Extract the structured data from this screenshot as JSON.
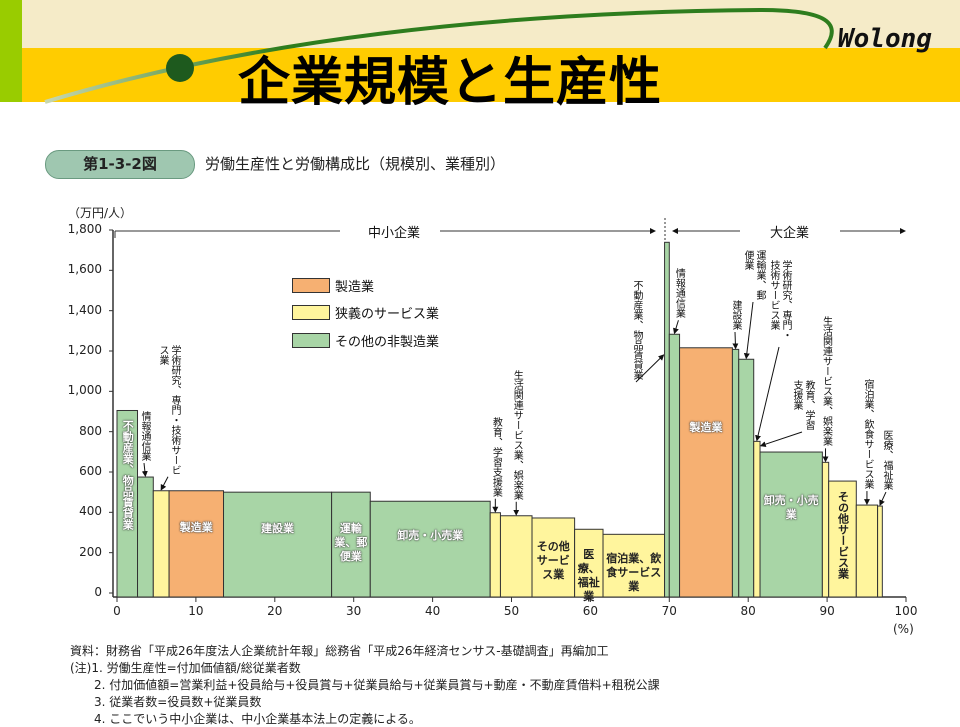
{
  "slide": {
    "title": "企業規模と生産性",
    "brand": "Wolong",
    "colors": {
      "top_band": "#f5ebc8",
      "title_band": "#ffcc00",
      "left_strip": "#99cc00",
      "swoosh": "#2e7d1e"
    }
  },
  "figure": {
    "number": "第1-3-2図",
    "title": "労働生産性と労働構成比（規模別、業種別）"
  },
  "chart_data": {
    "type": "bar",
    "subtype": "variable-width (marimekko)",
    "ylabel": "（万円/人）",
    "xlabel": "(%)",
    "ylim": [
      0,
      1800
    ],
    "xlim": [
      0,
      100
    ],
    "yticks": [
      "0",
      "200",
      "400",
      "600",
      "800",
      "1,000",
      "1,200",
      "1,400",
      "1,600",
      "1,800"
    ],
    "xticks": [
      "0",
      "10",
      "20",
      "30",
      "40",
      "50",
      "60",
      "70",
      "80",
      "90",
      "100"
    ],
    "grid": false,
    "legend_placement": "top-center",
    "segments": [
      {
        "label": "中小企業",
        "x_range": [
          0,
          69.4
        ]
      },
      {
        "label": "大企業",
        "x_range": [
          69.4,
          100
        ]
      }
    ],
    "legend": [
      {
        "key": "mfg",
        "label": "製造業",
        "color": "#f6b072"
      },
      {
        "key": "svc",
        "label": "狭義のサービス業",
        "color": "#fff59d"
      },
      {
        "key": "oth",
        "label": "その他の非製造業",
        "color": "#a8d5a6"
      }
    ],
    "bars": [
      {
        "label": "不動産業、物品賃貸業",
        "group": "oth",
        "x0": 0,
        "x1": 2.6,
        "value": 905,
        "label_mode": "inside-v"
      },
      {
        "label": "情報通信業",
        "group": "oth",
        "x0": 2.6,
        "x1": 4.6,
        "value": 575,
        "label_mode": "callout"
      },
      {
        "label": "学術研究、専門・技術サービス業",
        "group": "svc",
        "x0": 4.6,
        "x1": 6.6,
        "value": 507,
        "label_mode": "callout"
      },
      {
        "label": "製造業",
        "group": "mfg",
        "x0": 6.6,
        "x1": 13.5,
        "value": 507,
        "label_mode": "inside"
      },
      {
        "label": "建設業",
        "group": "oth",
        "x0": 13.5,
        "x1": 27.2,
        "value": 500,
        "label_mode": "inside"
      },
      {
        "label": "運輸業、郵便業",
        "group": "oth",
        "x0": 27.2,
        "x1": 32.1,
        "value": 500,
        "label_mode": "inside"
      },
      {
        "label": "卸売・小売業",
        "group": "oth",
        "x0": 32.1,
        "x1": 47.3,
        "value": 455,
        "label_mode": "inside"
      },
      {
        "label": "教育、学習支援業",
        "group": "svc",
        "x0": 47.3,
        "x1": 48.6,
        "value": 398,
        "label_mode": "callout"
      },
      {
        "label": "生活関連サービス業、娯楽業",
        "group": "svc",
        "x0": 48.6,
        "x1": 52.6,
        "value": 383,
        "label_mode": "callout"
      },
      {
        "label": "その他サービス業",
        "group": "svc",
        "x0": 52.6,
        "x1": 58.0,
        "value": 372,
        "label_mode": "inside"
      },
      {
        "label": "医療、福祉業",
        "group": "svc",
        "x0": 58.0,
        "x1": 61.6,
        "value": 316,
        "label_mode": "inside"
      },
      {
        "label": "宿泊業、飲食サービス業",
        "group": "svc",
        "x0": 61.6,
        "x1": 69.4,
        "value": 291,
        "label_mode": "inside"
      },
      {
        "label": "不動産業、物品賃貸業",
        "group": "oth",
        "x0": 69.4,
        "x1": 70.0,
        "value": 1739,
        "label_mode": "callout"
      },
      {
        "label": "情報通信業",
        "group": "oth",
        "x0": 70.0,
        "x1": 71.3,
        "value": 1283,
        "label_mode": "callout"
      },
      {
        "label": "製造業",
        "group": "mfg",
        "x0": 71.3,
        "x1": 78.0,
        "value": 1216,
        "label_mode": "inside"
      },
      {
        "label": "建設業",
        "group": "oth",
        "x0": 78.0,
        "x1": 78.8,
        "value": 1208,
        "label_mode": "callout"
      },
      {
        "label": "運輸業、郵便業",
        "group": "oth",
        "x0": 78.8,
        "x1": 80.7,
        "value": 1159,
        "label_mode": "callout"
      },
      {
        "label": "学術研究、専門・技術サービス業",
        "group": "svc",
        "x0": 80.7,
        "x1": 81.5,
        "value": 752,
        "label_mode": "callout"
      },
      {
        "label": "教育、学習支援業",
        "group": "svc",
        "x0": 81.5,
        "x1": 81.7,
        "value": 725,
        "label_mode": "callout"
      },
      {
        "label": "卸売・小売業",
        "group": "oth",
        "x0": 81.5,
        "x1": 89.4,
        "value": 699,
        "label_mode": "inside"
      },
      {
        "label": "生活関連サービス業、娯楽業",
        "group": "svc",
        "x0": 89.4,
        "x1": 90.2,
        "value": 648,
        "label_mode": "callout"
      },
      {
        "label": "その他サービス業",
        "group": "svc",
        "x0": 90.2,
        "x1": 93.7,
        "value": 555,
        "label_mode": "inside-v"
      },
      {
        "label": "宿泊業、飲食サービス業",
        "group": "svc",
        "x0": 93.7,
        "x1": 96.4,
        "value": 436,
        "label_mode": "callout"
      },
      {
        "label": "医療、福祉業",
        "group": "svc",
        "x0": 96.4,
        "x1": 97.0,
        "value": 431,
        "label_mode": "callout"
      }
    ]
  },
  "notes": [
    "資料：財務省「平成26年度法人企業統計年報」総務省「平成26年経済センサス-基礎調査」再編加工",
    "(注)1. 労働生産性=付加価値額/総従業者数",
    "　　2. 付加価値額=営業利益+役員給与+役員賞与+従業員給与+従業員賞与+動産・不動産賃借料+租税公課",
    "　　3. 従業者数=役員数+従業員数",
    "　　4. ここでいう中小企業は、中小企業基本法上の定義による。"
  ]
}
